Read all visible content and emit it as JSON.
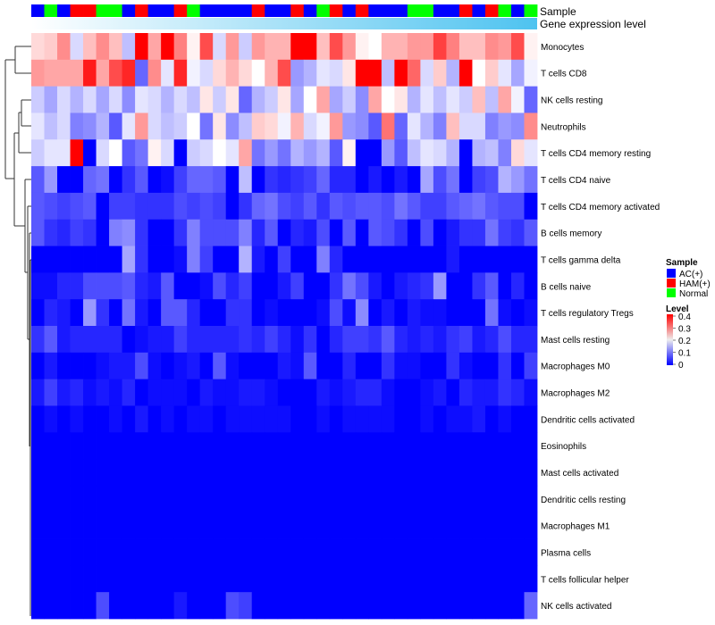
{
  "chart_data": {
    "type": "heatmap",
    "title": "",
    "annotation_labels": {
      "sample": "Sample",
      "gene_expression": "Gene expression level"
    },
    "samples": [
      "AC(+)",
      "Normal",
      "AC(+)",
      "HAM(+)",
      "HAM(+)",
      "Normal",
      "Normal",
      "AC(+)",
      "HAM(+)",
      "AC(+)",
      "AC(+)",
      "HAM(+)",
      "Normal",
      "AC(+)",
      "AC(+)",
      "AC(+)",
      "AC(+)",
      "HAM(+)",
      "AC(+)",
      "AC(+)",
      "HAM(+)",
      "AC(+)",
      "Normal",
      "HAM(+)",
      "AC(+)",
      "HAM(+)",
      "AC(+)",
      "AC(+)",
      "AC(+)",
      "Normal",
      "Normal",
      "AC(+)",
      "AC(+)",
      "HAM(+)",
      "AC(+)",
      "HAM(+)",
      "Normal",
      "AC(+)",
      "Normal"
    ],
    "gene_expression_range": [
      0,
      1
    ],
    "rows": [
      "Monocytes",
      "T cells CD8",
      "NK cells resting",
      "Neutrophils",
      "T cells CD4 memory resting",
      "T cells CD4 naive",
      "T cells CD4 memory activated",
      "B cells memory",
      "T cells gamma delta",
      "B cells naive",
      "T cells regulatory  Tregs",
      "Mast cells resting",
      "Macrophages M0",
      "Macrophages M2",
      "Dendritic cells activated",
      "Eosinophils",
      "Mast cells activated",
      "Dendritic cells resting",
      "Macrophages M1",
      "Plasma cells",
      "T cells follicular helper",
      "NK cells activated"
    ],
    "values": [
      [
        0.23,
        0.24,
        0.29,
        0.17,
        0.25,
        0.29,
        0.25,
        0.15,
        0.4,
        0.27,
        0.4,
        0.3,
        0.21,
        0.34,
        0.17,
        0.28,
        0.16,
        0.28,
        0.26,
        0.26,
        0.4,
        0.4,
        0.25,
        0.34,
        0.28,
        0.21,
        0.2,
        0.26,
        0.26,
        0.28,
        0.28,
        0.35,
        0.3,
        0.25,
        0.25,
        0.29,
        0.28,
        0.34,
        0.21
      ],
      [
        0.28,
        0.27,
        0.27,
        0.27,
        0.38,
        0.27,
        0.34,
        0.37,
        0.08,
        0.29,
        0.18,
        0.37,
        0.19,
        0.17,
        0.23,
        0.26,
        0.23,
        0.2,
        0.26,
        0.34,
        0.12,
        0.14,
        0.18,
        0.17,
        0.22,
        0.4,
        0.4,
        0.15,
        0.4,
        0.32,
        0.17,
        0.24,
        0.14,
        0.4,
        0.2,
        0.24,
        0.18,
        0.13,
        0.19
      ],
      [
        0.16,
        0.13,
        0.17,
        0.14,
        0.17,
        0.13,
        0.17,
        0.11,
        0.18,
        0.17,
        0.14,
        0.17,
        0.15,
        0.22,
        0.16,
        0.22,
        0.08,
        0.14,
        0.16,
        0.22,
        0.13,
        0.2,
        0.27,
        0.13,
        0.16,
        0.11,
        0.27,
        0.2,
        0.22,
        0.14,
        0.18,
        0.15,
        0.18,
        0.16,
        0.25,
        0.15,
        0.27,
        0.19,
        0.08
      ],
      [
        0.18,
        0.15,
        0.17,
        0.1,
        0.11,
        0.14,
        0.07,
        0.18,
        0.28,
        0.17,
        0.15,
        0.16,
        0.2,
        0.09,
        0.22,
        0.11,
        0.15,
        0.24,
        0.23,
        0.19,
        0.26,
        0.17,
        0.19,
        0.28,
        0.12,
        0.11,
        0.07,
        0.31,
        0.08,
        0.18,
        0.14,
        0.1,
        0.25,
        0.17,
        0.17,
        0.1,
        0.12,
        0.11,
        0.29
      ],
      [
        0.16,
        0.18,
        0.18,
        0.4,
        0,
        0.17,
        0.2,
        0.07,
        0.09,
        0.21,
        0.17,
        0,
        0.16,
        0.17,
        0.2,
        0.18,
        0.27,
        0.09,
        0.12,
        0.09,
        0.14,
        0.12,
        0.14,
        0.07,
        0.21,
        0,
        0,
        0.12,
        0.07,
        0.15,
        0.18,
        0.17,
        0.14,
        0,
        0.14,
        0.15,
        0.1,
        0.23,
        0.18
      ],
      [
        0.07,
        0.12,
        0,
        0,
        0.08,
        0.09,
        0,
        0.04,
        0.07,
        0,
        0.01,
        0.05,
        0.08,
        0.08,
        0.07,
        0,
        0.15,
        0,
        0.04,
        0.03,
        0.04,
        0.05,
        0.08,
        0.03,
        0.03,
        0,
        0.02,
        0,
        0.02,
        0,
        0.13,
        0.06,
        0.09,
        0,
        0.05,
        0.06,
        0.14,
        0.12,
        0.09
      ],
      [
        0.07,
        0.06,
        0.05,
        0.06,
        0.07,
        0,
        0.05,
        0.05,
        0.04,
        0.04,
        0.04,
        0.06,
        0.05,
        0.06,
        0.05,
        0,
        0.04,
        0.08,
        0.09,
        0.06,
        0.05,
        0.07,
        0.04,
        0.07,
        0.06,
        0.07,
        0.07,
        0.06,
        0.09,
        0.07,
        0.05,
        0.05,
        0.07,
        0.08,
        0.09,
        0.07,
        0.06,
        0.06,
        0
      ],
      [
        0.07,
        0.04,
        0.03,
        0.05,
        0.04,
        0,
        0.1,
        0.11,
        0.04,
        0,
        0,
        0.04,
        0.1,
        0.06,
        0.06,
        0.06,
        0.1,
        0.03,
        0.07,
        0,
        0.03,
        0.02,
        0.06,
        0,
        0.07,
        0,
        0.07,
        0.06,
        0.04,
        0,
        0.06,
        0,
        0.02,
        0.04,
        0.04,
        0.09,
        0.05,
        0.04,
        0.07
      ],
      [
        0,
        0,
        0,
        0,
        0,
        0,
        0,
        0.13,
        0.04,
        0,
        0,
        0.01,
        0.1,
        0.05,
        0,
        0,
        0.14,
        0.02,
        0,
        0.05,
        0,
        0,
        0.1,
        0.03,
        0,
        0,
        0,
        0,
        0,
        0,
        0,
        0,
        0.02,
        0,
        0,
        0,
        0,
        0,
        0
      ],
      [
        0.01,
        0.01,
        0.03,
        0.03,
        0.06,
        0.06,
        0.06,
        0.07,
        0.03,
        0.02,
        0.07,
        0,
        0,
        0.01,
        0.06,
        0.03,
        0.05,
        0,
        0,
        0.02,
        0.05,
        0,
        0,
        0.04,
        0.09,
        0.06,
        0.02,
        0,
        0.02,
        0.03,
        0.04,
        0.12,
        0,
        0,
        0.04,
        0.07,
        0,
        0.03,
        0
      ],
      [
        0,
        0.03,
        0.02,
        0,
        0.12,
        0.04,
        0,
        0.09,
        0.02,
        0,
        0.07,
        0.07,
        0.03,
        0,
        0,
        0.04,
        0.04,
        0,
        0.01,
        0,
        0,
        0,
        0.01,
        0.06,
        0.01,
        0.11,
        0,
        0.02,
        0,
        0.02,
        0.01,
        0.01,
        0,
        0,
        0,
        0.09,
        0.01,
        0,
        0.01
      ],
      [
        0.04,
        0.07,
        0.02,
        0.03,
        0.03,
        0.03,
        0.03,
        0,
        0.01,
        0.02,
        0.02,
        0.05,
        0.03,
        0.03,
        0.03,
        0.03,
        0.04,
        0.03,
        0.05,
        0.03,
        0.01,
        0.04,
        0,
        0.03,
        0.05,
        0.05,
        0.04,
        0.07,
        0.03,
        0.02,
        0.03,
        0.02,
        0.04,
        0.05,
        0.02,
        0.03,
        0.06,
        0.03,
        0.03
      ],
      [
        0,
        0.02,
        0,
        0,
        0,
        0.01,
        0.02,
        0.02,
        0.06,
        0.01,
        0,
        0.01,
        0.02,
        0,
        0.07,
        0.01,
        0,
        0,
        0,
        0.02,
        0.01,
        0.07,
        0,
        0,
        0.03,
        0,
        0,
        0.04,
        0.01,
        0.01,
        0,
        0,
        0.04,
        0.01,
        0,
        0,
        0.04,
        0,
        0.05
      ],
      [
        0.02,
        0.05,
        0.02,
        0.03,
        0.01,
        0.02,
        0.01,
        0.03,
        0,
        0.01,
        0.01,
        0.01,
        0,
        0.02,
        0.01,
        0.01,
        0.02,
        0.02,
        0.01,
        0,
        0,
        0,
        0.02,
        0.01,
        0.02,
        0.03,
        0.03,
        0.01,
        0,
        0,
        0.01,
        0.02,
        0,
        0.03,
        0.02,
        0.02,
        0.04,
        0.03,
        0.01
      ],
      [
        0,
        0.01,
        0,
        0.01,
        0,
        0,
        0.01,
        0,
        0.02,
        0,
        0.01,
        0,
        0.01,
        0.01,
        0,
        0.01,
        0.01,
        0.01,
        0.01,
        0.01,
        0,
        0,
        0.01,
        0,
        0.01,
        0.01,
        0.01,
        0.01,
        0,
        0,
        0.01,
        0,
        0.01,
        0.01,
        0.02,
        0,
        0.01,
        0,
        0
      ],
      [
        0,
        0,
        0,
        0,
        0,
        0,
        0,
        0,
        0,
        0,
        0,
        0,
        0,
        0,
        0,
        0,
        0,
        0,
        0,
        0,
        0,
        0,
        0,
        0,
        0,
        0,
        0,
        0,
        0,
        0,
        0,
        0,
        0,
        0,
        0,
        0,
        0,
        0,
        0
      ],
      [
        0,
        0,
        0,
        0,
        0,
        0,
        0,
        0,
        0,
        0,
        0,
        0,
        0,
        0,
        0,
        0,
        0,
        0,
        0,
        0,
        0,
        0,
        0,
        0,
        0,
        0,
        0,
        0,
        0,
        0,
        0,
        0,
        0,
        0,
        0,
        0,
        0,
        0,
        0
      ],
      [
        0,
        0,
        0,
        0,
        0,
        0,
        0,
        0,
        0,
        0,
        0,
        0,
        0,
        0,
        0,
        0,
        0,
        0,
        0,
        0,
        0,
        0,
        0,
        0,
        0,
        0,
        0,
        0,
        0,
        0,
        0,
        0,
        0,
        0,
        0,
        0,
        0,
        0,
        0
      ],
      [
        0,
        0,
        0,
        0,
        0,
        0,
        0,
        0,
        0,
        0,
        0,
        0,
        0,
        0,
        0,
        0,
        0,
        0,
        0,
        0,
        0,
        0,
        0,
        0,
        0,
        0,
        0,
        0,
        0,
        0,
        0,
        0,
        0,
        0,
        0,
        0,
        0,
        0,
        0
      ],
      [
        0,
        0,
        0,
        0,
        0,
        0,
        0,
        0,
        0,
        0,
        0,
        0,
        0,
        0,
        0,
        0,
        0,
        0,
        0,
        0,
        0,
        0,
        0,
        0,
        0,
        0,
        0,
        0,
        0,
        0,
        0,
        0,
        0,
        0,
        0,
        0,
        0,
        0,
        0
      ],
      [
        0,
        0,
        0,
        0,
        0,
        0,
        0,
        0,
        0,
        0,
        0,
        0,
        0,
        0,
        0,
        0,
        0,
        0,
        0,
        0,
        0,
        0,
        0,
        0,
        0,
        0,
        0,
        0,
        0,
        0,
        0,
        0,
        0,
        0,
        0,
        0,
        0,
        0,
        0
      ],
      [
        0,
        0,
        0,
        0,
        0,
        0.06,
        0,
        0,
        0,
        0,
        0,
        0.02,
        0,
        0,
        0,
        0.06,
        0.05,
        0,
        0,
        0,
        0,
        0,
        0,
        0,
        0,
        0,
        0,
        0,
        0,
        0,
        0,
        0,
        0,
        0,
        0,
        0,
        0,
        0,
        0.08
      ]
    ],
    "color_scale": {
      "min": 0,
      "mid": 0.2,
      "max": 0.4,
      "colors": [
        "#0000ff",
        "#ffffff",
        "#ff0000"
      ]
    },
    "legend": {
      "placement": "right",
      "sample_title": "Sample",
      "sample_items": [
        {
          "label": "AC(+)",
          "color": "#0000ff"
        },
        {
          "label": "HAM(+)",
          "color": "#ff0000"
        },
        {
          "label": "Normal",
          "color": "#00ff00"
        }
      ],
      "level_title": "Level",
      "level_ticks": [
        "0.4",
        "0.3",
        "0.2",
        "0.1",
        "0"
      ]
    },
    "gene_expression_colors": [
      "#ffffff",
      "#4ec3f0"
    ]
  }
}
